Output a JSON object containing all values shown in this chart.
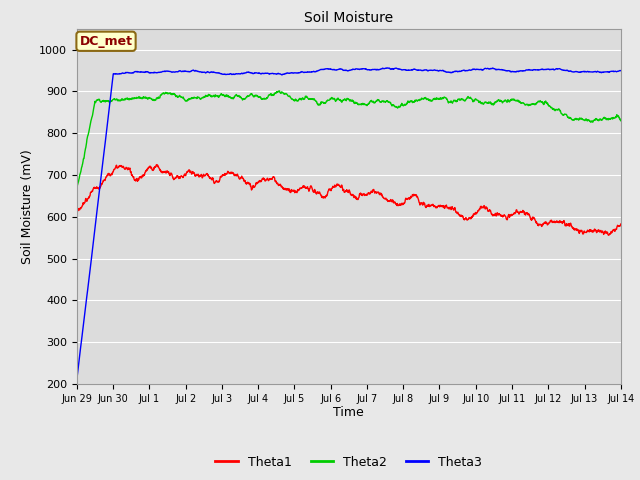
{
  "title": "Soil Moisture",
  "xlabel": "Time",
  "ylabel": "Soil Moisture (mV)",
  "ylim": [
    200,
    1050
  ],
  "yticks": [
    200,
    300,
    400,
    500,
    600,
    700,
    800,
    900,
    1000
  ],
  "background_color": "#e8e8e8",
  "axes_bg_color": "#dcdcdc",
  "grid_color": "#ffffff",
  "annotation_text": "DC_met",
  "annotation_color": "#8b0000",
  "annotation_bg": "#ffffcc",
  "annotation_border": "#8b6914",
  "legend_labels": [
    "Theta1",
    "Theta2",
    "Theta3"
  ],
  "legend_colors": [
    "#ff0000",
    "#00cc00",
    "#0000ff"
  ],
  "theta1_color": "#ff0000",
  "theta2_color": "#00cc00",
  "theta3_color": "#0000ff",
  "line_width": 1.0,
  "tick_labels": [
    "Jun 29",
    "Jun 30",
    "Jul 1",
    "Jul 2",
    "Jul 3",
    "Jul 4",
    "Jul 5",
    "Jul 6",
    "Jul 7",
    "Jul 8",
    "Jul 9",
    "Jul 10",
    "Jul 11",
    "Jul 12",
    "Jul 13",
    "Jul 14"
  ]
}
